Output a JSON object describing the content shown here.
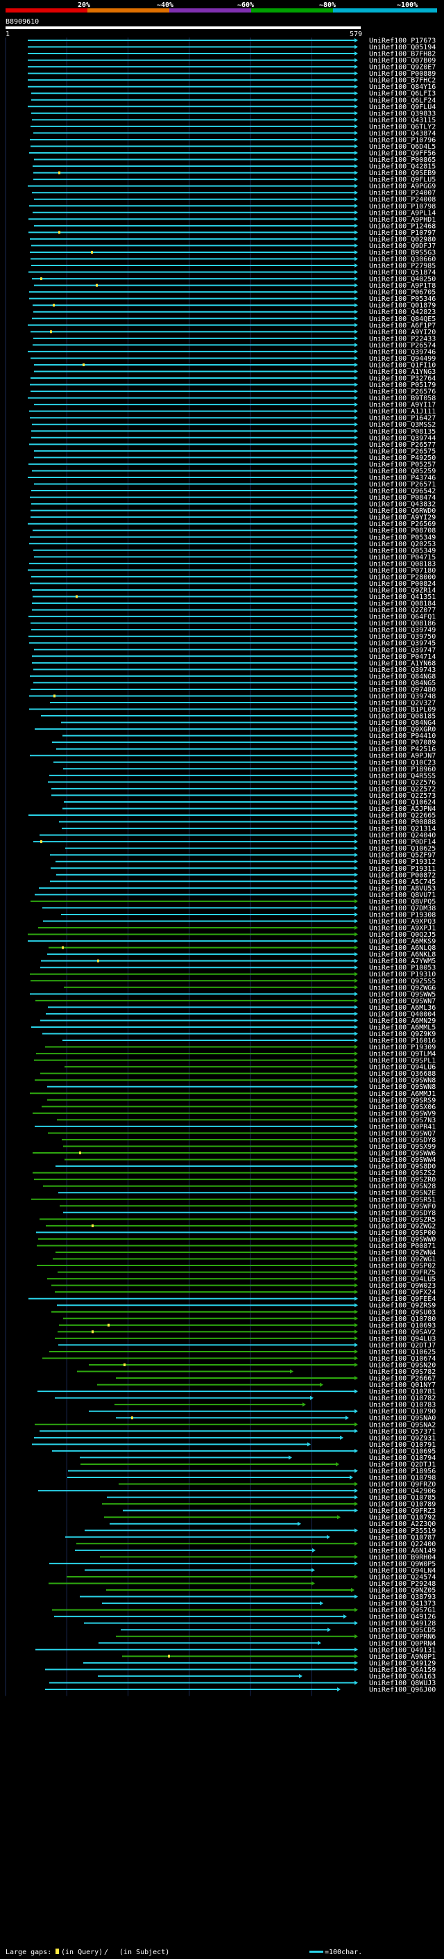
{
  "header": {
    "query_id": "B8909610",
    "scale_marks": [
      "20%",
      "~40%",
      "~60%",
      "~80%",
      "~100%"
    ],
    "scale_colors": [
      "#e00000",
      "#e07000",
      "#8030b0",
      "#00a000",
      "#00b0d0"
    ],
    "query_start": "1",
    "query_end": "579"
  },
  "colors": {
    "cyan": "#2ad3e8",
    "green": "#2ea80f",
    "gap": "#ffe840"
  },
  "hits": [
    "UniRef100_P17673",
    "UniRef100_Q05194",
    "UniRef100_B7FH82",
    "UniRef100_Q07B09",
    "UniRef100_Q9Z0E7",
    "UniRef100_P00889",
    "UniRef100_B7FHC2",
    "UniRef100_Q84Y16",
    "UniRef100_Q6LFI3",
    "UniRef100_Q6LF24",
    "UniRef100_Q9FLU4",
    "UniRef100_Q39833",
    "UniRef100_Q43115",
    "UniRef100_Q6TLY2",
    "UniRef100_Q43874",
    "UniRef100_P10796",
    "UniRef100_Q6D4L5",
    "UniRef100_Q9FF56",
    "UniRef100_P00865",
    "UniRef100_Q42815",
    "UniRef100_Q9SEB9",
    "UniRef100_Q9FLU5",
    "UniRef100_A9PGG9",
    "UniRef100_P24007",
    "UniRef100_P24008",
    "UniRef100_P10798",
    "UniRef100_A9PL14",
    "UniRef100_A9PHD1",
    "UniRef100_P12468",
    "UniRef100_P10797",
    "UniRef100_Q02980",
    "UniRef100_Q9DFJ7",
    "UniRef100_B9S5G3",
    "UniRef100_Q30660",
    "UniRef100_P27985",
    "UniRef100_Q51874",
    "UniRef100_Q40250",
    "UniRef100_A9P1T8",
    "UniRef100_P06705",
    "UniRef100_P05346",
    "UniRef100_Q01879",
    "UniRef100_Q42823",
    "UniRef100_Q84QE5",
    "UniRef100_A6F1P7",
    "UniRef100_A9YI20",
    "UniRef100_P22433",
    "UniRef100_P26574",
    "UniRef100_Q39746",
    "UniRef100_Q94499",
    "UniRef100_Q1FI10",
    "UniRef100_A1YNG3",
    "UniRef100_P32764",
    "UniRef100_P05179",
    "UniRef100_P26576",
    "UniRef100_B9T058",
    "UniRef100_A9YI17",
    "UniRef100_A1J111",
    "UniRef100_P16427",
    "UniRef100_Q3MSS2",
    "UniRef100_P08135",
    "UniRef100_Q39744",
    "UniRef100_P26577",
    "UniRef100_P26575",
    "UniRef100_P49250",
    "UniRef100_P05257",
    "UniRef100_Q05259",
    "UniRef100_P43746",
    "UniRef100_P26571",
    "UniRef100_Q96542",
    "UniRef100_P08474",
    "UniRef100_Q43832",
    "UniRef100_Q6RWD0",
    "UniRef100_A9YI29",
    "UniRef100_P26569",
    "UniRef100_P08708",
    "UniRef100_P05349",
    "UniRef100_Q20253",
    "UniRef100_Q05349",
    "UniRef100_P04715",
    "UniRef100_Q08183",
    "UniRef100_P07180",
    "UniRef100_P28000",
    "UniRef100_P00824",
    "UniRef100_Q9ZR14",
    "UniRef100_Q41351",
    "UniRef100_Q08184",
    "UniRef100_Q2Z077",
    "UniRef100_Q64FQ1",
    "UniRef100_Q08186",
    "UniRef100_Q39749",
    "UniRef100_Q39750",
    "UniRef100_Q39745",
    "UniRef100_Q39747",
    "UniRef100_P04714",
    "UniRef100_A1YN68",
    "UniRef100_Q39743",
    "UniRef100_Q84NG8",
    "UniRef100_Q84NG5",
    "UniRef100_Q97480",
    "UniRef100_Q39748",
    "UniRef100_Q2V327",
    "UniRef100_B1PL09",
    "UniRef100_Q08185",
    "UniRef100_Q84NG4",
    "UniRef100_Q9XGR0",
    "UniRef100_P94410",
    "UniRef100_P07089",
    "UniRef100_P42516",
    "UniRef100_A9PJN7",
    "UniRef100_Q10C23",
    "UniRef100_P18960",
    "UniRef100_Q4R5S5",
    "UniRef100_Q2Z576",
    "UniRef100_Q2Z572",
    "UniRef100_Q2Z573",
    "UniRef100_Q10624",
    "UniRef100_A5JPN4",
    "UniRef100_Q22665",
    "UniRef100_P00888",
    "UniRef100_Q21314",
    "UniRef100_Q24040",
    "UniRef100_P0DF14",
    "UniRef100_Q10625",
    "UniRef100_Q5ZF97",
    "UniRef100_P19312",
    "UniRef100_P19311",
    "UniRef100_P00872",
    "UniRef100_A5C745",
    "UniRef100_A8VU53",
    "UniRef100_Q8VU71",
    "UniRef100_Q8VPQ5",
    "UniRef100_Q7DM38",
    "UniRef100_P19308",
    "UniRef100_A9XPQ3",
    "UniRef100_A9XPJ1",
    "UniRef100_Q0Q2J5",
    "UniRef100_A6MKS9",
    "UniRef100_A6NLQ8",
    "UniRef100_A6NKL8",
    "UniRef100_A7YWM5",
    "UniRef100_P10053",
    "UniRef100_P19310",
    "UniRef100_Q9Z5S5",
    "UniRef100_Q9ZWG6",
    "UniRef100_Q9SWW5",
    "UniRef100_Q9SWN7",
    "UniRef100_A6ML36",
    "UniRef100_Q40004",
    "UniRef100_A6MN29",
    "UniRef100_A6MML5",
    "UniRef100_Q9Z9K9",
    "UniRef100_P16016",
    "UniRef100_P19309",
    "UniRef100_Q9TLM4",
    "UniRef100_Q9SPL1",
    "UniRef100_Q94LU6",
    "UniRef100_Q36688",
    "UniRef100_Q9SWN8",
    "UniRef100_Q9SWN8",
    "UniRef100_A6MMJ1",
    "UniRef100_Q9SRS9",
    "UniRef100_Q9SX06",
    "UniRef100_Q9SWV9",
    "UniRef100_Q9S7N3",
    "UniRef100_Q0PR41",
    "UniRef100_Q9SWQ7",
    "UniRef100_Q9SDY8",
    "UniRef100_Q9SX99",
    "UniRef100_Q9SWW6",
    "UniRef100_Q9SWW4",
    "UniRef100_Q9S8D0",
    "UniRef100_Q9SZS2",
    "UniRef100_Q9SZR0",
    "UniRef100_Q9SN28",
    "UniRef100_Q9SN2E",
    "UniRef100_Q9SR51",
    "UniRef100_Q9SWF0",
    "UniRef100_Q9SDY8",
    "UniRef100_Q9SZR5",
    "UniRef100_Q9ZWG2",
    "UniRef100_Q9SP00",
    "UniRef100_Q9SWW0",
    "UniRef100_P00871",
    "UniRef100_Q9ZWN4",
    "UniRef100_Q9ZWG1",
    "UniRef100_Q9SP02",
    "UniRef100_Q9FRZ5",
    "UniRef100_Q94LU5",
    "UniRef100_Q9W023",
    "UniRef100_Q9FX24",
    "UniRef100_Q9FEE4",
    "UniRef100_Q9ZRS9",
    "UniRef100_Q9SU03",
    "UniRef100_Q10780",
    "UniRef100_Q10693",
    "UniRef100_Q9SAV2",
    "UniRef100_Q94LU3",
    "UniRef100_Q2DTJ7",
    "UniRef100_Q10625",
    "UniRef100_Q10674",
    "UniRef100_Q9SN20",
    "UniRef100_Q9S782",
    "UniRef100_P26667",
    "UniRef100_Q01NY7",
    "UniRef100_Q10781",
    "UniRef100_Q10782",
    "UniRef100_Q10783",
    "UniRef100_Q10790",
    "UniRef100_Q9SNA0",
    "UniRef100_Q9SNA2",
    "UniRef100_Q57371",
    "UniRef100_Q9Z931",
    "UniRef100_Q10791",
    "UniRef100_Q10695",
    "UniRef100_Q10794",
    "UniRef100_Q2DTJ1",
    "UniRef100_P18956",
    "UniRef100_Q10798",
    "UniRef100_Q9FRZ0",
    "UniRef100_Q42906",
    "UniRef100_Q10785",
    "UniRef100_Q10789",
    "UniRef100_Q9FRZ3",
    "UniRef100_Q10792",
    "UniRef100_A2Z3Q0",
    "UniRef100_P35519",
    "UniRef100_Q10787",
    "UniRef100_Q22400",
    "UniRef100_A6N149",
    "UniRef100_B9RH04",
    "UniRef100_Q9W0P5",
    "UniRef100_Q94LN4",
    "UniRef100_Q24574",
    "UniRef100_P29248",
    "UniRef100_Q9NZ05",
    "UniRef100_Q38793",
    "UniRef100_Q41373",
    "UniRef100_Q9S7G1",
    "UniRef100_Q49126",
    "UniRef100_Q49128",
    "UniRef100_Q9SCD5",
    "UniRef100_Q0PRN6",
    "UniRef100_Q0PRN4",
    "UniRef100_Q49131",
    "UniRef100_A9N0P1",
    "UniRef100_Q49129",
    "UniRef100_Q6A159",
    "UniRef100_Q6A163",
    "UniRef100_Q8WUJ3",
    "UniRef100_Q96J00"
  ],
  "footer": {
    "large_gaps_label": "Large gaps:",
    "query_gap_label": "(in Query)",
    "separator": "/",
    "subject_gap_label": "(in Subject)",
    "scale_label": "=100char."
  }
}
